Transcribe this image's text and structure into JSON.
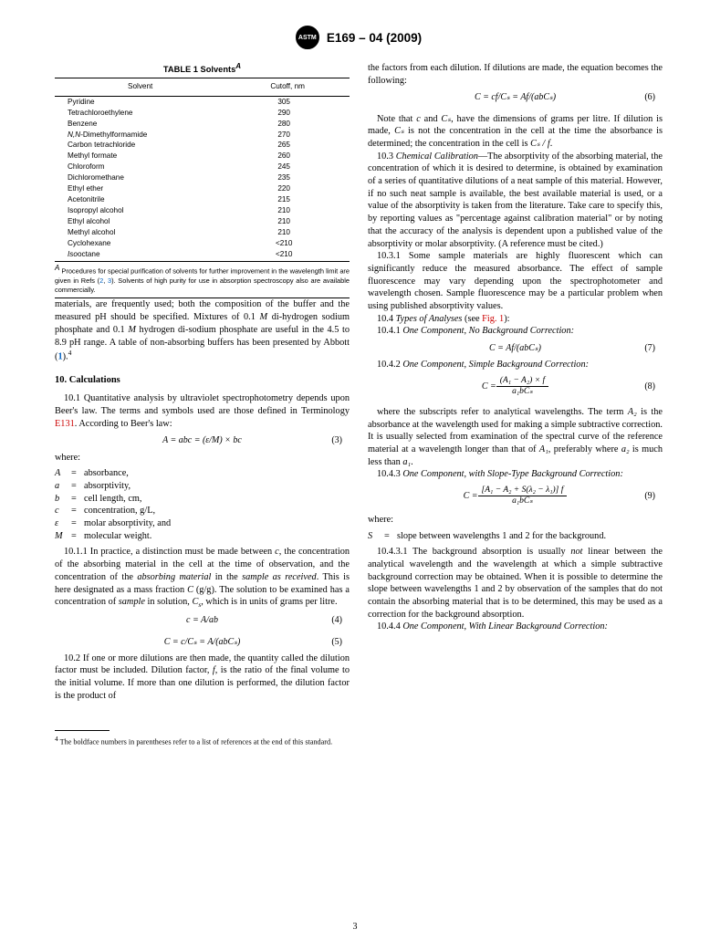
{
  "header": {
    "logo_text": "ASTM",
    "doc_id": "E169 – 04 (2009)"
  },
  "table": {
    "caption_prefix": "TABLE 1 Solvents",
    "caption_super": "A",
    "col_solvent": "Solvent",
    "col_cutoff": "Cutoff, nm",
    "rows": [
      {
        "name": "Pyridine",
        "cutoff": "305"
      },
      {
        "name": "Tetrachloroethylene",
        "cutoff": "290"
      },
      {
        "name": "Benzene",
        "cutoff": "280"
      },
      {
        "name": "N,N-Dimethylformamide",
        "cutoff": "270",
        "name_ital_prefix": "N,N-"
      },
      {
        "name": "Carbon tetrachloride",
        "cutoff": "265"
      },
      {
        "name": "Methyl formate",
        "cutoff": "260"
      },
      {
        "name": "Chloroform",
        "cutoff": "245"
      },
      {
        "name": "Dichloromethane",
        "cutoff": "235"
      },
      {
        "name": "Ethyl ether",
        "cutoff": "220"
      },
      {
        "name": "Acetonitrile",
        "cutoff": "215"
      },
      {
        "name": "Isopropyl alcohol",
        "cutoff": "210"
      },
      {
        "name": "Ethyl alcohol",
        "cutoff": "210"
      },
      {
        "name": "Methyl alcohol",
        "cutoff": "210"
      },
      {
        "name": "Cyclohexane",
        "cutoff": "<210"
      },
      {
        "name": "Isooctane",
        "cutoff": "<210",
        "name_ital_prefix": "Iso"
      }
    ],
    "footnote_super": "A",
    "footnote_part1": " Procedures for special purification of solvents for further improvement in the wavelength limit are given in Refs (",
    "footnote_ref1": "2",
    "footnote_comma": ", ",
    "footnote_ref2": "3",
    "footnote_part2": "). Solvents of high purity for use in absorption spectroscopy also are available commercially."
  },
  "left": {
    "p1_a": "materials, are frequently used; both the composition of the buffer and the measured pH should be specified. Mixtures of 0.1 ",
    "p1_b": "M",
    "p1_c": " di-hydrogen sodium phosphate and 0.1 ",
    "p1_d": "M",
    "p1_e": " hydrogen di-sodium phosphate are useful in the 4.5 to 8.9 pH range. A table of non-absorbing buffers has been presented by Abbott (",
    "p1_ref": "1",
    "p1_f": ").",
    "p1_sup4": "4",
    "section10": "10.  Calculations",
    "p10_1_a": "10.1 Quantitative analysis by ultraviolet spectrophotometry depends upon Beer's law. The terms and symbols used are those defined in Terminology ",
    "p10_1_link": "E131",
    "p10_1_b": ". According to Beer's law:",
    "eq3": "A = abc = (ε/M) × bc",
    "eq3num": "(3)",
    "where": "where:",
    "defs": [
      {
        "sym": "A",
        "def": "absorbance,"
      },
      {
        "sym": "a",
        "def": "absorptivity,"
      },
      {
        "sym": "b",
        "def": "cell length, cm,"
      },
      {
        "sym": "c",
        "def": "concentration, g/L,"
      },
      {
        "sym": "ε",
        "def": "molar absorptivity, and"
      },
      {
        "sym": "M",
        "def": "molecular weight."
      }
    ],
    "p10_1_1": "10.1.1 In practice, a distinction must be made between c, the concentration of the absorbing material in the cell at the time of observation, and the concentration of the absorbing material in the sample as received. This is here designated as a mass fraction C (g/g). The solution to be examined has a concentration of sample in solution, Cₛ, which is in units of grams per litre.",
    "eq4": "c = A/ab",
    "eq4num": "(4)",
    "eq5": "C = c/Cₛ = A/(abCₛ)",
    "eq5num": "(5)",
    "p10_2": "10.2 If one or more dilutions are then made, the quantity called the dilution factor must be included. Dilution factor, f, is the ratio of the final volume to the initial volume. If more than one dilution is performed, the dilution factor is the product of",
    "footnote4_sup": "4",
    "footnote4": " The boldface numbers in parentheses refer to a list of references at the end of this standard."
  },
  "right": {
    "p_top": "the factors from each dilution. If dilutions are made, the equation becomes the following:",
    "eq6": "C = cf/Cₛ = Af/(abCₛ)",
    "eq6num": "(6)",
    "p_note_a": "Note that ",
    "p_note_b": "c",
    "p_note_c": " and ",
    "p_note_d": "Cₛ",
    "p_note_e": ", have the dimensions of grams per litre. If dilution is made, ",
    "p_note_f": "Cₛ",
    "p_note_g": " is not the concentration in the cell at the time the absorbance is determined; the concentration in the cell is ",
    "p_note_h": "Cₛ / f",
    "p_note_i": ".",
    "p10_3_a": "10.3 ",
    "p10_3_head": "Chemical Calibration",
    "p10_3_b": "—The absorptivity of the absorbing material, the concentration of which it is desired to determine, is obtained by examination of a series of quantitative dilutions of a neat sample of this material. However, if no such neat sample is available, the best available material is used, or a value of the absorptivity is taken from the literature. Take care to specify this, by reporting values as \"percentage against calibration material\" or by noting that the accuracy of the analysis is dependent upon a published value of the absorptivity or molar absorptivity. (A reference must be cited.)",
    "p10_3_1": "10.3.1 Some sample materials are highly fluorescent which can significantly reduce the measured absorbance. The effect of sample fluorescence may vary depending upon the spectrophotometer and wavelength chosen. Sample fluorescence may be a particular problem when using published absorptivity values.",
    "p10_4_a": "10.4 ",
    "p10_4_head": "Types of Analyses",
    "p10_4_b": " (see ",
    "p10_4_link": "Fig. 1",
    "p10_4_c": "):",
    "p10_4_1_a": "10.4.1 ",
    "p10_4_1_head": "One Component, No Background Correction:",
    "eq7": "C = Af/(abCₛ)",
    "eq7num": "(7)",
    "p10_4_2_a": "10.4.2 ",
    "p10_4_2_head": "One Component, Simple Background Correction:",
    "eq8_num": "(A₁ − A₂) × f",
    "eq8_den": "a₁bCₛ",
    "eq8_lhs": "C = ",
    "eq8num": "(8)",
    "p_sub_a": "where the subscripts refer to analytical wavelengths. The term ",
    "p_sub_b": "A₂",
    "p_sub_c": " is the absorbance at the wavelength used for making a simple subtractive correction. It is usually selected from examination of the spectral curve of the reference material at a wavelength longer than that of ",
    "p_sub_d": "A₁",
    "p_sub_e": ", preferably where ",
    "p_sub_f": "a₂",
    "p_sub_g": " is much less than ",
    "p_sub_h": "a₁",
    "p_sub_i": ".",
    "p10_4_3_a": "10.4.3 ",
    "p10_4_3_head": "One Component, with Slope-Type Background Correction:",
    "eq9_num": "[A₁ − A₂ + S(λ₂ − λ₁)] f",
    "eq9_den": "a₁bCₛ",
    "eq9_lhs": "C = ",
    "eq9num": "(9)",
    "where2": "where:",
    "def_S_sym": "S",
    "def_S": "slope between wavelengths 1 and 2 for the background.",
    "p10_4_3_1_a": "10.4.3.1 The background absorption is usually ",
    "p10_4_3_1_not": "not",
    "p10_4_3_1_b": " linear between the analytical wavelength and the wavelength at which a simple subtractive background correction may be obtained. When it is possible to determine the slope between wavelengths 1 and 2 by observation of the samples that do not contain the absorbing material that is to be determined, this may be used as a correction for the background absorption.",
    "p10_4_4_a": "10.4.4 ",
    "p10_4_4_head": "One Component, With Linear Background Correction:"
  },
  "pagenum": "3"
}
